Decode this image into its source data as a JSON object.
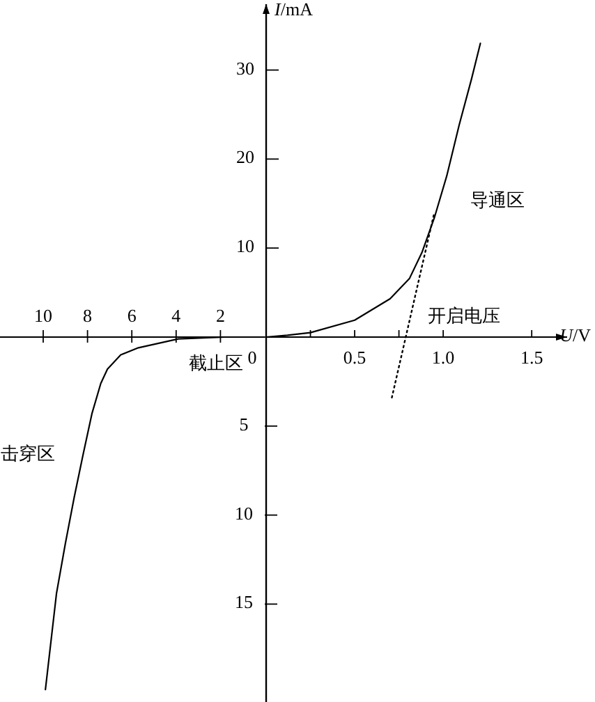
{
  "chart_data": [
    {
      "type": "line",
      "xlabel": "U/V",
      "ylabel": "I/mA",
      "xlim": [
        0,
        1.7
      ],
      "ylim": [
        -41,
        37.4
      ],
      "xticks": [
        {
          "value": 0,
          "label": "0"
        },
        {
          "value": 0.25,
          "label": null
        },
        0.5,
        {
          "value": 0.75,
          "label": null
        },
        {
          "value": 1,
          "label": "1.0"
        },
        1.5
      ],
      "yticks": [
        10,
        20,
        30
      ],
      "series": [
        {
          "color": "#000000",
          "x": [
            0,
            0.12,
            0.25,
            0.5,
            0.7,
            0.81,
            0.88,
            0.95,
            1.02,
            1.09,
            1.16,
            1.21
          ],
          "values": [
            0,
            0.2,
            0.5,
            1.9,
            4.3,
            6.6,
            9.5,
            13.4,
            18.1,
            23.8,
            29.0,
            33.0
          ]
        },
        {
          "type": "line",
          "color": "#000000",
          "line_style": "dotted",
          "x": [
            0.71,
            0.95
          ],
          "values": [
            -6.8,
            14.0
          ]
        }
      ],
      "annotations": [
        "导通区",
        "开启电压"
      ]
    },
    {
      "type": "line",
      "xlim": [
        -11.95,
        0
      ],
      "ylim": [
        -20.5,
        18.7
      ],
      "xticks": [
        {
          "value": -10,
          "label": "10"
        },
        {
          "value": -8,
          "label": "8"
        },
        {
          "value": -6,
          "label": "6"
        },
        {
          "value": -4,
          "label": "4"
        },
        {
          "value": -2,
          "label": "2"
        }
      ],
      "yticks": [
        {
          "value": -5,
          "label": "5"
        },
        {
          "value": -10,
          "label": "10"
        },
        {
          "value": -15,
          "label": "15"
        }
      ],
      "series": [
        {
          "color": "#000000",
          "x": [
            0,
            -1.8,
            -3.9,
            -5.7,
            -6.5,
            -7.1,
            -7.4,
            -7.8,
            -8.2,
            -8.6,
            -9.0,
            -9.4,
            -9.9
          ],
          "values": [
            0,
            0,
            -0.1,
            -0.6,
            -1.0,
            -1.8,
            -2.6,
            -4.3,
            -6.6,
            -9.0,
            -11.6,
            -14.4,
            -19.8
          ]
        }
      ],
      "annotations": [
        "截止区",
        "击穿区"
      ]
    }
  ]
}
